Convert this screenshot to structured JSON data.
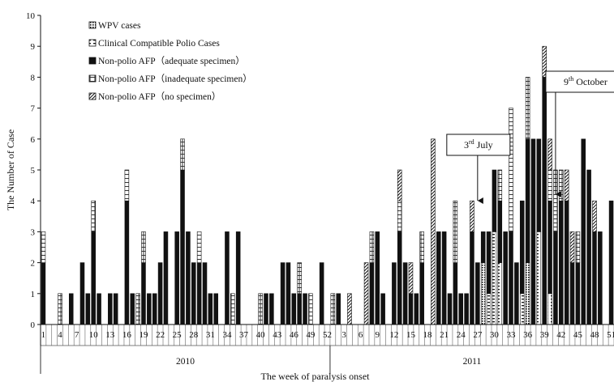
{
  "chart_data": {
    "type": "bar",
    "stacked": true,
    "xlabel": "The week of paralysis onset",
    "ylabel": "The Number of Case",
    "ylim": [
      0,
      10
    ],
    "y_ticks": [
      "0",
      "1",
      "2",
      "3",
      "4",
      "5",
      "6",
      "7",
      "8",
      "9",
      "10"
    ],
    "grid": false,
    "legend_placement": "top-left",
    "x_tick_labels": {
      "2010": [
        "1",
        "4",
        "7",
        "10",
        "13",
        "16",
        "19",
        "22",
        "25",
        "28",
        "31",
        "34",
        "37",
        "40",
        "43",
        "46",
        "49",
        "52"
      ],
      "2011": [
        "3",
        "6",
        "9",
        "12",
        "15",
        "18",
        "21",
        "24",
        "27",
        "30",
        "33",
        "36",
        "39",
        "42",
        "45",
        "48",
        "51"
      ]
    },
    "years": [
      "2010",
      "2011"
    ],
    "series": [
      {
        "name": "WPV cases",
        "pattern": "dots"
      },
      {
        "name": "Clinical Compatible Polio Cases",
        "pattern": "dashes"
      },
      {
        "name": "Non-polio AFP（adequate specimen）",
        "pattern": "solid"
      },
      {
        "name": "Non-polio AFP（inadequate specimen）",
        "pattern": "bricks"
      },
      {
        "name": "Non-polio AFP（no specimen）",
        "pattern": "diagonal"
      }
    ],
    "weeks": [
      {
        "year": "2010",
        "week": 1,
        "values": [
          0,
          0,
          2,
          1,
          0
        ]
      },
      {
        "year": "2010",
        "week": 2,
        "values": [
          0,
          0,
          0,
          0,
          0
        ]
      },
      {
        "year": "2010",
        "week": 3,
        "values": [
          0,
          0,
          0,
          0,
          0
        ]
      },
      {
        "year": "2010",
        "week": 4,
        "values": [
          0,
          0,
          0,
          1,
          0
        ]
      },
      {
        "year": "2010",
        "week": 5,
        "values": [
          0,
          0,
          0,
          0,
          0
        ]
      },
      {
        "year": "2010",
        "week": 6,
        "values": [
          0,
          0,
          1,
          0,
          0
        ]
      },
      {
        "year": "2010",
        "week": 7,
        "values": [
          0,
          0,
          0,
          0,
          0
        ]
      },
      {
        "year": "2010",
        "week": 8,
        "values": [
          0,
          0,
          2,
          0,
          0
        ]
      },
      {
        "year": "2010",
        "week": 9,
        "values": [
          0,
          0,
          1,
          0,
          0
        ]
      },
      {
        "year": "2010",
        "week": 10,
        "values": [
          0,
          0,
          3,
          1,
          0
        ]
      },
      {
        "year": "2010",
        "week": 11,
        "values": [
          0,
          0,
          1,
          0,
          0
        ]
      },
      {
        "year": "2010",
        "week": 12,
        "values": [
          0,
          0,
          0,
          0,
          0
        ]
      },
      {
        "year": "2010",
        "week": 13,
        "values": [
          0,
          0,
          1,
          0,
          0
        ]
      },
      {
        "year": "2010",
        "week": 14,
        "values": [
          0,
          0,
          1,
          0,
          0
        ]
      },
      {
        "year": "2010",
        "week": 15,
        "values": [
          0,
          0,
          0,
          0,
          0
        ]
      },
      {
        "year": "2010",
        "week": 16,
        "values": [
          0,
          0,
          4,
          1,
          0
        ]
      },
      {
        "year": "2010",
        "week": 17,
        "values": [
          0,
          0,
          1,
          0,
          0
        ]
      },
      {
        "year": "2010",
        "week": 18,
        "values": [
          0,
          0,
          0,
          1,
          0
        ]
      },
      {
        "year": "2010",
        "week": 19,
        "values": [
          0,
          0,
          2,
          1,
          0
        ]
      },
      {
        "year": "2010",
        "week": 20,
        "values": [
          0,
          0,
          1,
          0,
          0
        ]
      },
      {
        "year": "2010",
        "week": 21,
        "values": [
          0,
          0,
          1,
          0,
          0
        ]
      },
      {
        "year": "2010",
        "week": 22,
        "values": [
          0,
          0,
          2,
          0,
          0
        ]
      },
      {
        "year": "2010",
        "week": 23,
        "values": [
          0,
          0,
          3,
          0,
          0
        ]
      },
      {
        "year": "2010",
        "week": 24,
        "values": [
          0,
          0,
          0,
          0,
          0
        ]
      },
      {
        "year": "2010",
        "week": 25,
        "values": [
          0,
          0,
          3,
          0,
          0
        ]
      },
      {
        "year": "2010",
        "week": 26,
        "values": [
          0,
          0,
          5,
          1,
          0
        ]
      },
      {
        "year": "2010",
        "week": 27,
        "values": [
          0,
          0,
          3,
          0,
          0
        ]
      },
      {
        "year": "2010",
        "week": 28,
        "values": [
          0,
          0,
          2,
          0,
          0
        ]
      },
      {
        "year": "2010",
        "week": 29,
        "values": [
          0,
          0,
          2,
          1,
          0
        ]
      },
      {
        "year": "2010",
        "week": 30,
        "values": [
          0,
          0,
          2,
          0,
          0
        ]
      },
      {
        "year": "2010",
        "week": 31,
        "values": [
          0,
          0,
          1,
          0,
          0
        ]
      },
      {
        "year": "2010",
        "week": 32,
        "values": [
          0,
          0,
          1,
          0,
          0
        ]
      },
      {
        "year": "2010",
        "week": 33,
        "values": [
          0,
          0,
          0,
          0,
          0
        ]
      },
      {
        "year": "2010",
        "week": 34,
        "values": [
          0,
          0,
          3,
          0,
          0
        ]
      },
      {
        "year": "2010",
        "week": 35,
        "values": [
          0,
          0,
          0,
          1,
          0
        ]
      },
      {
        "year": "2010",
        "week": 36,
        "values": [
          0,
          0,
          3,
          0,
          0
        ]
      },
      {
        "year": "2010",
        "week": 37,
        "values": [
          0,
          0,
          0,
          0,
          0
        ]
      },
      {
        "year": "2010",
        "week": 38,
        "values": [
          0,
          0,
          0,
          0,
          0
        ]
      },
      {
        "year": "2010",
        "week": 39,
        "values": [
          0,
          0,
          0,
          0,
          0
        ]
      },
      {
        "year": "2010",
        "week": 40,
        "values": [
          0,
          0,
          0,
          1,
          0
        ]
      },
      {
        "year": "2010",
        "week": 41,
        "values": [
          0,
          0,
          1,
          0,
          0
        ]
      },
      {
        "year": "2010",
        "week": 42,
        "values": [
          0,
          0,
          1,
          0,
          0
        ]
      },
      {
        "year": "2010",
        "week": 43,
        "values": [
          0,
          0,
          0,
          0,
          0
        ]
      },
      {
        "year": "2010",
        "week": 44,
        "values": [
          0,
          0,
          2,
          0,
          0
        ]
      },
      {
        "year": "2010",
        "week": 45,
        "values": [
          0,
          0,
          2,
          0,
          0
        ]
      },
      {
        "year": "2010",
        "week": 46,
        "values": [
          0,
          0,
          1,
          0,
          0
        ]
      },
      {
        "year": "2010",
        "week": 47,
        "values": [
          0,
          0,
          1,
          1,
          0
        ]
      },
      {
        "year": "2010",
        "week": 48,
        "values": [
          0,
          0,
          1,
          0,
          0
        ]
      },
      {
        "year": "2010",
        "week": 49,
        "values": [
          0,
          0,
          0,
          1,
          0
        ]
      },
      {
        "year": "2010",
        "week": 50,
        "values": [
          0,
          0,
          0,
          0,
          0
        ]
      },
      {
        "year": "2010",
        "week": 51,
        "values": [
          0,
          0,
          2,
          0,
          0
        ]
      },
      {
        "year": "2010",
        "week": 52,
        "values": [
          0,
          0,
          0,
          0,
          0
        ]
      },
      {
        "year": "2011",
        "week": 1,
        "values": [
          0,
          0,
          0,
          1,
          0
        ]
      },
      {
        "year": "2011",
        "week": 2,
        "values": [
          0,
          0,
          1,
          0,
          0
        ]
      },
      {
        "year": "2011",
        "week": 3,
        "values": [
          0,
          0,
          0,
          0,
          0
        ]
      },
      {
        "year": "2011",
        "week": 4,
        "values": [
          0,
          0,
          0,
          0,
          1
        ]
      },
      {
        "year": "2011",
        "week": 5,
        "values": [
          0,
          0,
          0,
          0,
          0
        ]
      },
      {
        "year": "2011",
        "week": 6,
        "values": [
          0,
          0,
          0,
          0,
          0
        ]
      },
      {
        "year": "2011",
        "week": 7,
        "values": [
          0,
          0,
          0,
          0,
          2
        ]
      },
      {
        "year": "2011",
        "week": 8,
        "values": [
          0,
          0,
          2,
          1,
          0
        ]
      },
      {
        "year": "2011",
        "week": 9,
        "values": [
          0,
          0,
          3,
          0,
          0
        ]
      },
      {
        "year": "2011",
        "week": 10,
        "values": [
          0,
          0,
          1,
          0,
          0
        ]
      },
      {
        "year": "2011",
        "week": 11,
        "values": [
          0,
          0,
          0,
          0,
          0
        ]
      },
      {
        "year": "2011",
        "week": 12,
        "values": [
          0,
          0,
          2,
          0,
          0
        ]
      },
      {
        "year": "2011",
        "week": 13,
        "values": [
          0,
          0,
          3,
          1,
          1
        ]
      },
      {
        "year": "2011",
        "week": 14,
        "values": [
          0,
          0,
          2,
          0,
          0
        ]
      },
      {
        "year": "2011",
        "week": 15,
        "values": [
          0,
          0,
          1,
          0,
          1
        ]
      },
      {
        "year": "2011",
        "week": 16,
        "values": [
          0,
          0,
          1,
          0,
          0
        ]
      },
      {
        "year": "2011",
        "week": 17,
        "values": [
          0,
          0,
          2,
          1,
          0
        ]
      },
      {
        "year": "2011",
        "week": 18,
        "values": [
          0,
          0,
          0,
          0,
          0
        ]
      },
      {
        "year": "2011",
        "week": 19,
        "values": [
          0,
          0,
          0,
          0,
          6
        ]
      },
      {
        "year": "2011",
        "week": 20,
        "values": [
          0,
          0,
          3,
          0,
          0
        ]
      },
      {
        "year": "2011",
        "week": 21,
        "values": [
          0,
          0,
          3,
          0,
          0
        ]
      },
      {
        "year": "2011",
        "week": 22,
        "values": [
          0,
          0,
          1,
          0,
          0
        ]
      },
      {
        "year": "2011",
        "week": 23,
        "values": [
          0,
          0,
          2,
          2,
          0
        ]
      },
      {
        "year": "2011",
        "week": 24,
        "values": [
          0,
          0,
          1,
          0,
          0
        ]
      },
      {
        "year": "2011",
        "week": 25,
        "values": [
          0,
          0,
          1,
          0,
          0
        ]
      },
      {
        "year": "2011",
        "week": 26,
        "values": [
          0,
          0,
          3,
          0,
          1
        ]
      },
      {
        "year": "2011",
        "week": 27,
        "values": [
          0,
          0,
          2,
          0,
          0
        ]
      },
      {
        "year": "2011",
        "week": 28,
        "values": [
          2,
          0,
          1,
          0,
          0
        ]
      },
      {
        "year": "2011",
        "week": 29,
        "values": [
          0,
          1,
          2,
          0,
          0
        ]
      },
      {
        "year": "2011",
        "week": 30,
        "values": [
          0,
          3,
          2,
          0,
          0
        ]
      },
      {
        "year": "2011",
        "week": 31,
        "values": [
          0,
          2,
          2,
          1,
          0
        ]
      },
      {
        "year": "2011",
        "week": 32,
        "values": [
          0,
          0,
          3,
          0,
          0
        ]
      },
      {
        "year": "2011",
        "week": 33,
        "values": [
          0,
          0,
          3,
          4,
          0
        ]
      },
      {
        "year": "2011",
        "week": 34,
        "values": [
          0,
          0,
          2,
          0,
          0
        ]
      },
      {
        "year": "2011",
        "week": 35,
        "values": [
          0,
          1,
          3,
          0,
          0
        ]
      },
      {
        "year": "2011",
        "week": 36,
        "values": [
          2,
          0,
          4,
          2,
          0
        ]
      },
      {
        "year": "2011",
        "week": 37,
        "values": [
          0,
          0,
          6,
          0,
          0
        ]
      },
      {
        "year": "2011",
        "week": 38,
        "values": [
          0,
          3,
          3,
          0,
          0
        ]
      },
      {
        "year": "2011",
        "week": 39,
        "values": [
          0,
          0,
          8,
          0,
          1
        ]
      },
      {
        "year": "2011",
        "week": 40,
        "values": [
          0,
          1,
          3,
          1,
          1
        ]
      },
      {
        "year": "2011",
        "week": 41,
        "values": [
          0,
          0,
          3,
          2,
          0
        ]
      },
      {
        "year": "2011",
        "week": 42,
        "values": [
          0,
          0,
          4,
          1,
          0
        ]
      },
      {
        "year": "2011",
        "week": 43,
        "values": [
          0,
          0,
          4,
          0,
          1
        ]
      },
      {
        "year": "2011",
        "week": 44,
        "values": [
          0,
          0,
          2,
          0,
          1
        ]
      },
      {
        "year": "2011",
        "week": 45,
        "values": [
          0,
          0,
          2,
          1,
          0
        ]
      },
      {
        "year": "2011",
        "week": 46,
        "values": [
          0,
          0,
          6,
          0,
          0
        ]
      },
      {
        "year": "2011",
        "week": 47,
        "values": [
          0,
          0,
          5,
          0,
          0
        ]
      },
      {
        "year": "2011",
        "week": 48,
        "values": [
          0,
          0,
          3,
          0,
          1
        ]
      },
      {
        "year": "2011",
        "week": 49,
        "values": [
          0,
          0,
          3,
          0,
          0
        ]
      },
      {
        "year": "2011",
        "week": 50,
        "values": [
          0,
          0,
          0,
          0,
          0
        ]
      },
      {
        "year": "2011",
        "week": 51,
        "values": [
          0,
          0,
          4,
          0,
          0
        ]
      }
    ],
    "annotations": [
      {
        "ordinal": "3",
        "suffix": "rd",
        "text": " July",
        "year": "2011",
        "week": 27
      },
      {
        "ordinal": "9",
        "suffix": "th",
        "text": " October",
        "year": "2011",
        "week": 41
      }
    ]
  }
}
